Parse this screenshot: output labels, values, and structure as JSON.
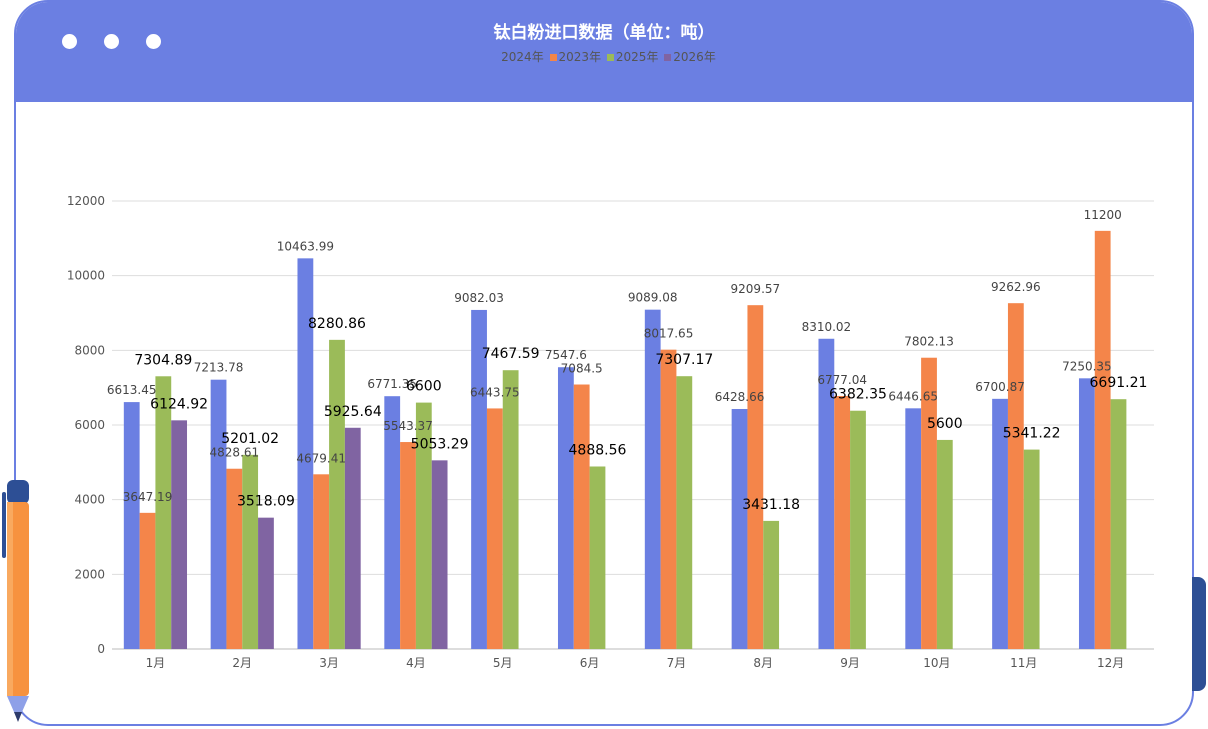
{
  "window": {
    "title": "钛白粉进口数据（单位：吨）"
  },
  "chart_data": {
    "type": "bar",
    "title": "钛白粉进口数据（单位：吨）",
    "categories": [
      "1月",
      "2月",
      "3月",
      "4月",
      "5月",
      "6月",
      "7月",
      "8月",
      "9月",
      "10月",
      "11月",
      "12月"
    ],
    "series": [
      {
        "name": "2024年",
        "color": "#6b7fe2",
        "values": [
          6613.45,
          7213.78,
          10463.99,
          6771.35,
          9082.03,
          7547.6,
          9089.08,
          6428.66,
          8310.02,
          6446.65,
          6700.87,
          7250.35
        ],
        "labels": [
          "6613.45",
          "7213.78",
          "10463.99",
          "6771.35",
          "9082.03",
          "7547.6",
          "9089.08",
          "6428.66",
          "8310.02",
          "6446.65",
          "6700.87",
          "7250.35"
        ]
      },
      {
        "name": "2023年",
        "color": "#f4854a",
        "values": [
          3647.19,
          4828.61,
          4679.41,
          5543.37,
          6443.75,
          7084.5,
          8017.65,
          9209.57,
          6777.04,
          7802.13,
          9262.96,
          11200
        ],
        "labels": [
          "3647.19",
          "4828.61",
          "4679.41",
          "5543.37",
          "6443.75",
          "7084.5",
          "8017.65",
          "9209.57",
          "6777.04",
          "7802.13",
          "9262.96",
          "11200"
        ]
      },
      {
        "name": "2025年",
        "color": "#9bbb59",
        "values": [
          7304.89,
          5201.02,
          8280.86,
          6600,
          7467.59,
          4888.56,
          7307.17,
          3431.18,
          6382.35,
          5600,
          5341.22,
          6691.21
        ],
        "labels": [
          "7304.89",
          "5201.02",
          "8280.86",
          "6600",
          "7467.59",
          "4888.56",
          "7307.17",
          "3431.18",
          "6382.35",
          "5600",
          "5341.22",
          "6691.21"
        ]
      },
      {
        "name": "2026年",
        "color": "#8064a2",
        "values": [
          6124.92,
          3518.09,
          5925.64,
          5053.29,
          null,
          null,
          null,
          null,
          null,
          null,
          null,
          null
        ],
        "labels": [
          "6124.92",
          "3518.09",
          "5925.64",
          "5053.29",
          "",
          "",
          "",
          "",
          "",
          "",
          "",
          ""
        ]
      }
    ],
    "yticks": [
      "0",
      "2000",
      "4000",
      "6000",
      "8000",
      "10000",
      "12000"
    ],
    "ylim": [
      0,
      12000
    ],
    "grid": true,
    "legend_position": "top-center"
  }
}
